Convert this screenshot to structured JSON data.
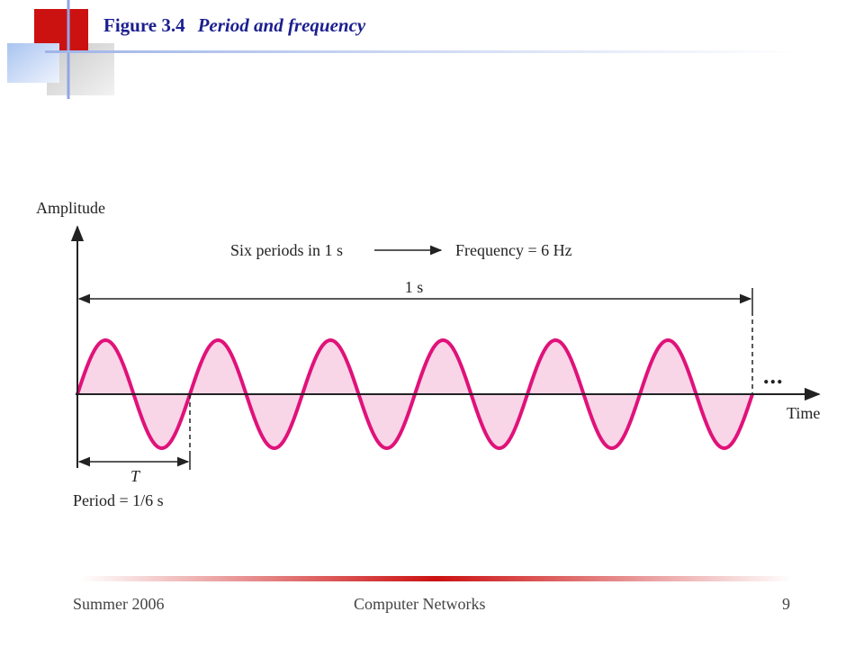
{
  "slide": {
    "figure_number": "Figure 3.4",
    "figure_title": "Period and frequency",
    "accent_color": "#cc1111",
    "title_color": "#1b1f8f"
  },
  "diagram": {
    "y_axis_label": "Amplitude",
    "x_axis_label": "Time",
    "cycles_label": "Six periods in 1 s",
    "frequency_label": "Frequency = 6 Hz",
    "duration_label": "1 s",
    "period_symbol": "T",
    "period_label": "Period = 1/6 s",
    "continuation": "...",
    "cycles": 6,
    "wave_color": "#e0127a",
    "fill_color": "#f9d5e8"
  },
  "footer": {
    "term": "Summer 2006",
    "course": "Computer Networks",
    "page": "9"
  }
}
